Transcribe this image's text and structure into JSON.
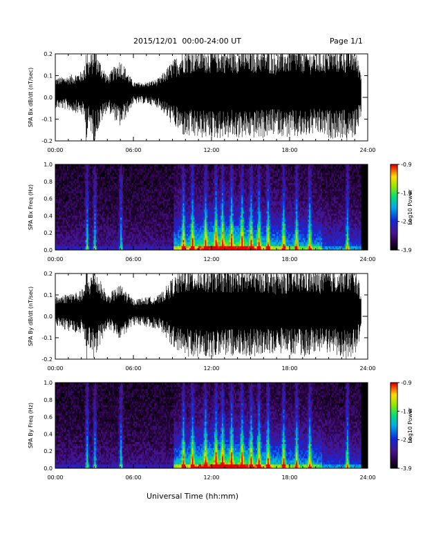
{
  "header": {
    "title": "2015/12/01  00:00-24:00 UT",
    "page": "Page 1/1"
  },
  "x_axis_label": "Universal Time (hh:mm)",
  "chart_data": [
    {
      "type": "line",
      "ylabel": "SPA Bx dB/dt (nT/sec)",
      "xlim": [
        "00:00",
        "24:00"
      ],
      "ylim": [
        -0.2,
        0.2
      ],
      "xticks": [
        "00:00",
        "06:00",
        "12:00",
        "18:00",
        "24:00"
      ],
      "yticks": [
        "-0.2",
        "-0.1",
        "0.0",
        "0.1",
        "0.2"
      ],
      "color": "#000000",
      "envelope": {
        "hours": [
          0,
          1,
          2,
          3,
          4,
          5,
          6,
          7,
          8,
          9,
          10,
          11,
          12,
          13,
          14,
          15,
          16,
          17,
          18,
          19,
          20,
          21,
          22,
          23,
          24
        ],
        "amplitude": [
          0.06,
          0.07,
          0.09,
          0.2,
          0.07,
          0.15,
          0.04,
          0.04,
          0.06,
          0.14,
          0.2,
          0.2,
          0.2,
          0.2,
          0.2,
          0.2,
          0.2,
          0.18,
          0.2,
          0.2,
          0.18,
          0.2,
          0.2,
          0.2,
          0.0
        ]
      }
    },
    {
      "type": "heatmap",
      "ylabel": "SPA Bx Freq (Hz)",
      "xlim": [
        "00:00",
        "24:00"
      ],
      "ylim": [
        0.0,
        1.0
      ],
      "xticks": [
        "00:00",
        "06:00",
        "12:00",
        "18:00",
        "24:00"
      ],
      "yticks": [
        "0.0",
        "0.2",
        "0.4",
        "0.6",
        "0.8",
        "1.0"
      ],
      "colorbar": {
        "label": "Log10 Power",
        "ticks": [
          "-0.9",
          "-1.9",
          "-2.9",
          "-3.9"
        ],
        "range": [
          -3.9,
          -0.9
        ]
      },
      "no_data_after_hour": 23.5
    },
    {
      "type": "line",
      "ylabel": "SPA By dB/dt (nT/sec)",
      "xlim": [
        "00:00",
        "24:00"
      ],
      "ylim": [
        -0.2,
        0.2
      ],
      "xticks": [
        "00:00",
        "06:00",
        "12:00",
        "18:00",
        "24:00"
      ],
      "yticks": [
        "-0.2",
        "-0.1",
        "0.0",
        "0.1",
        "0.2"
      ],
      "color": "#000000",
      "envelope": {
        "hours": [
          0,
          1,
          2,
          3,
          4,
          5,
          6,
          7,
          8,
          9,
          10,
          11,
          12,
          13,
          14,
          15,
          16,
          17,
          18,
          19,
          20,
          21,
          22,
          23,
          24
        ],
        "amplitude": [
          0.06,
          0.08,
          0.09,
          0.2,
          0.07,
          0.12,
          0.05,
          0.06,
          0.07,
          0.15,
          0.2,
          0.2,
          0.2,
          0.2,
          0.2,
          0.2,
          0.2,
          0.18,
          0.19,
          0.2,
          0.18,
          0.2,
          0.2,
          0.2,
          0.0
        ]
      }
    },
    {
      "type": "heatmap",
      "ylabel": "SPA By Freq (Hz)",
      "xlim": [
        "00:00",
        "24:00"
      ],
      "ylim": [
        0.0,
        1.0
      ],
      "xticks": [
        "00:00",
        "06:00",
        "12:00",
        "18:00",
        "24:00"
      ],
      "yticks": [
        "0.0",
        "0.2",
        "0.4",
        "0.6",
        "0.8",
        "1.0"
      ],
      "colorbar": {
        "label": "Log10 Power",
        "ticks": [
          "-0.9",
          "-1.9",
          "-2.9",
          "-3.9"
        ],
        "range": [
          -3.9,
          -0.9
        ]
      },
      "no_data_after_hour": 23.5
    }
  ],
  "colors": {
    "background": "#ffffff",
    "foreground": "#000000",
    "no_data": "#000000"
  }
}
